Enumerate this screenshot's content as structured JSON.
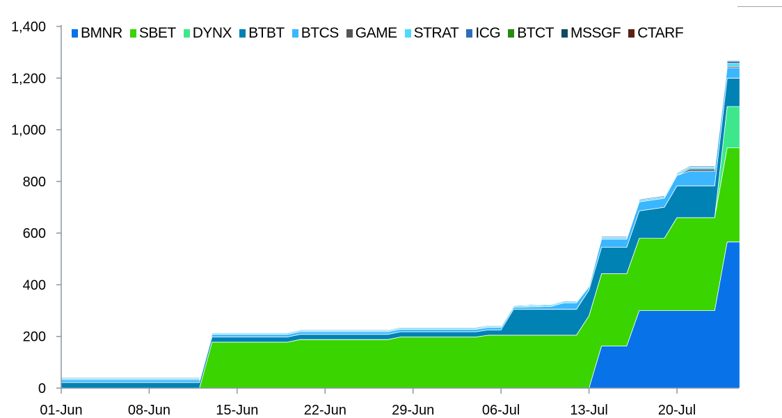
{
  "chart_data": {
    "type": "area",
    "stacked": true,
    "title": "",
    "xlabel": "",
    "ylabel": "",
    "ylim": [
      0,
      1400
    ],
    "yticks": [
      "0",
      "200",
      "400",
      "600",
      "800",
      "1,000",
      "1,200",
      "1,400"
    ],
    "ytick_values": [
      0,
      200,
      400,
      600,
      800,
      1000,
      1200,
      1400
    ],
    "xticks": [
      "01-Jun",
      "08-Jun",
      "15-Jun",
      "22-Jun",
      "29-Jun",
      "06-Jul",
      "13-Jul",
      "20-Jul"
    ],
    "grid": false,
    "legend_position": "top",
    "x": [
      "01-Jun",
      "12-Jun",
      "13-Jun",
      "19-Jun",
      "20-Jun",
      "27-Jun",
      "28-Jun",
      "04-Jul",
      "05-Jul",
      "06-Jul",
      "07-Jul",
      "10-Jul",
      "11-Jul",
      "12-Jul",
      "13-Jul",
      "14-Jul",
      "16-Jul",
      "17-Jul",
      "19-Jul",
      "20-Jul",
      "21-Jul",
      "23-Jul",
      "24-Jul",
      "25-Jul"
    ],
    "series": [
      {
        "name": "BMNR",
        "color": "#0873E8",
        "values": [
          0,
          0,
          0,
          0,
          0,
          0,
          0,
          0,
          0,
          0,
          0,
          0,
          0,
          0,
          0,
          163,
          163,
          300,
          300,
          300,
          300,
          300,
          566,
          566
        ]
      },
      {
        "name": "SBET",
        "color": "#3AD400",
        "values": [
          0,
          0,
          178,
          178,
          188,
          188,
          198,
          198,
          205,
          205,
          205,
          205,
          205,
          205,
          280,
          280,
          280,
          280,
          280,
          360,
          360,
          360,
          364,
          364
        ]
      },
      {
        "name": "DYNX",
        "color": "#3DE88C",
        "values": [
          0,
          0,
          0,
          0,
          0,
          0,
          0,
          0,
          0,
          0,
          0,
          0,
          0,
          0,
          0,
          0,
          0,
          0,
          0,
          0,
          0,
          0,
          160,
          160
        ]
      },
      {
        "name": "BTBT",
        "color": "#0082B4",
        "values": [
          22,
          22,
          20,
          20,
          20,
          20,
          20,
          20,
          20,
          20,
          100,
          100,
          100,
          100,
          100,
          102,
          102,
          106,
          120,
          123,
          123,
          123,
          110,
          110
        ]
      },
      {
        "name": "BTCS",
        "color": "#3BB6FF",
        "values": [
          10,
          10,
          10,
          10,
          10,
          10,
          10,
          10,
          10,
          10,
          8,
          12,
          25,
          25,
          12,
          32,
          32,
          35,
          35,
          40,
          57,
          57,
          40,
          40
        ]
      },
      {
        "name": "GAME",
        "color": "#555555",
        "values": [
          0,
          0,
          0,
          0,
          0,
          0,
          0,
          0,
          0,
          0,
          0,
          0,
          0,
          0,
          0,
          0,
          0,
          0,
          0,
          0,
          8,
          8,
          5,
          5
        ]
      },
      {
        "name": "STRAT",
        "color": "#4FD9FF",
        "values": [
          5,
          5,
          5,
          5,
          5,
          5,
          5,
          5,
          5,
          5,
          5,
          5,
          5,
          5,
          5,
          6,
          6,
          6,
          6,
          6,
          7,
          7,
          12,
          12
        ]
      },
      {
        "name": "ICG",
        "color": "#2E6DB8",
        "values": [
          3,
          3,
          3,
          3,
          3,
          3,
          3,
          3,
          3,
          3,
          3,
          3,
          3,
          3,
          3,
          4,
          4,
          4,
          4,
          4,
          4,
          4,
          8,
          8
        ]
      },
      {
        "name": "BTCT",
        "color": "#2A8A10",
        "values": [
          0,
          0,
          0,
          0,
          0,
          0,
          0,
          0,
          0,
          0,
          0,
          0,
          0,
          0,
          0,
          0,
          0,
          0,
          0,
          1,
          1,
          1,
          3,
          3
        ]
      },
      {
        "name": "MSSGF",
        "color": "#0E4A60",
        "values": [
          0,
          0,
          0,
          0,
          0,
          0,
          0,
          0,
          0,
          0,
          0,
          0,
          0,
          0,
          0,
          0,
          0,
          0,
          0,
          1,
          1,
          1,
          2,
          2
        ]
      },
      {
        "name": "CTARF",
        "color": "#5A2210",
        "values": [
          0,
          0,
          0,
          0,
          0,
          0,
          0,
          0,
          0,
          0,
          0,
          0,
          0,
          0,
          0,
          0,
          0,
          0,
          0,
          1,
          1,
          1,
          2,
          2
        ]
      }
    ]
  }
}
